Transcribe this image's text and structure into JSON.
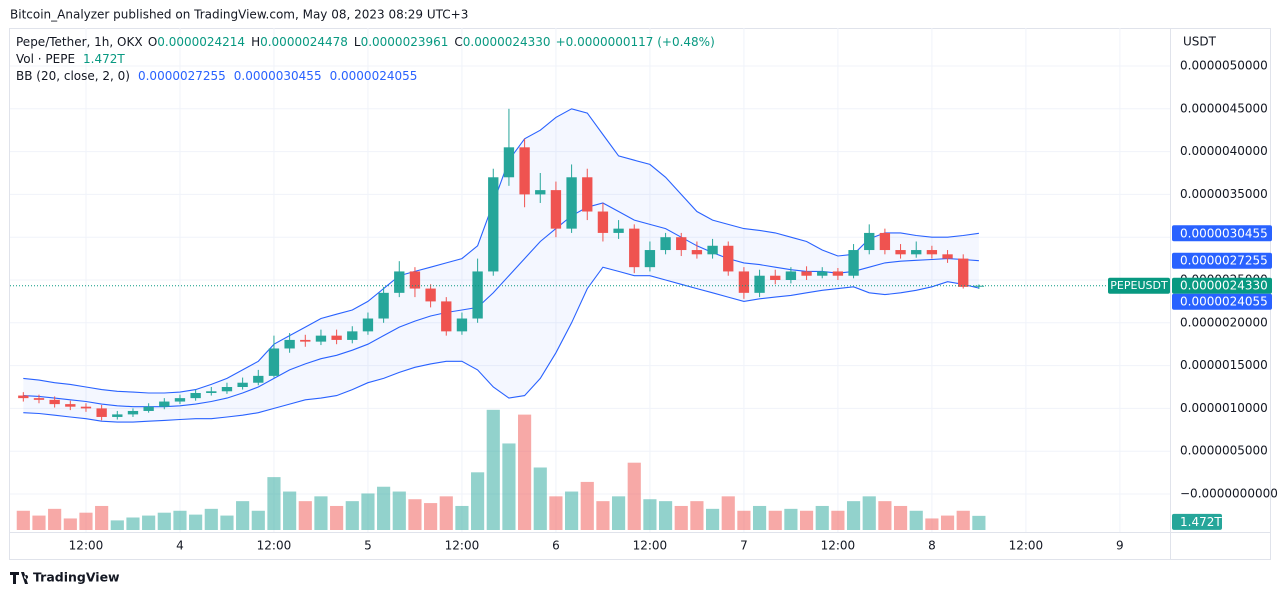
{
  "header": {
    "published": "Bitcoin_Analyzer published on TradingView.com, May 08, 2023 08:29 UTC+3",
    "brand": "TradingView"
  },
  "chart_data": {
    "type": "candlestick",
    "legend": {
      "symbol": "Pepe/Tether, 1h, OKX",
      "ohlc": [
        [
          "O",
          "0.0000024214"
        ],
        [
          "H",
          "0.0000024478"
        ],
        [
          "L",
          "0.0000023961"
        ],
        [
          "C",
          "0.0000024330"
        ]
      ],
      "change": "+0.0000000117 (+0.48%)",
      "volume": {
        "name": "Vol · PEPE",
        "value": "1.472T"
      },
      "bb": {
        "name": "BB (20, close, 2, 0)",
        "values": [
          "0.0000027255",
          "0.0000030455",
          "0.0000024055"
        ]
      }
    },
    "y_axis_label": "USDT",
    "up_color": "#26a69a",
    "down_color": "#ef5350",
    "bb_color": "#2962ff",
    "xlim": [
      2.3,
      150.4
    ],
    "xticks": [
      {
        "value": 12,
        "label": "12:00"
      },
      {
        "value": 24,
        "label": "4"
      },
      {
        "value": 36,
        "label": "12:00"
      },
      {
        "value": 48,
        "label": "5"
      },
      {
        "value": 60,
        "label": "12:00"
      },
      {
        "value": 72,
        "label": "6"
      },
      {
        "value": 84,
        "label": "12:00"
      },
      {
        "value": 96,
        "label": "7"
      },
      {
        "value": 108,
        "label": "12:00"
      },
      {
        "value": 120,
        "label": "8"
      },
      {
        "value": 132,
        "label": "12:00"
      },
      {
        "value": 144,
        "label": "9"
      }
    ],
    "ylim": [
      -4.44e-07,
      5.444e-06
    ],
    "yticks": [
      {
        "value": 5e-06,
        "label": "0.0000050000"
      },
      {
        "value": 4.5e-06,
        "label": "0.0000045000"
      },
      {
        "value": 4e-06,
        "label": "0.0000040000"
      },
      {
        "value": 3.5e-06,
        "label": "0.0000035000"
      },
      {
        "value": 3e-06,
        "label": "0.0000030000"
      },
      {
        "value": 2.5e-06,
        "label": "0.0000025000"
      },
      {
        "value": 2e-06,
        "label": "0.0000020000"
      },
      {
        "value": 1.5e-06,
        "label": "0.0000015000"
      },
      {
        "value": 1e-06,
        "label": "0.0000010000"
      },
      {
        "value": 5e-07,
        "label": "0.0000005000"
      },
      {
        "value": 0,
        "label": "−0.0000000000"
      }
    ],
    "volume_ylim": [
      0,
      13000000000000.0
    ],
    "grid": true,
    "x": [
      4,
      6,
      8,
      10,
      12,
      14,
      16,
      18,
      20,
      22,
      24,
      26,
      28,
      30,
      32,
      34,
      36,
      38,
      40,
      42,
      44,
      46,
      48,
      50,
      52,
      54,
      56,
      58,
      60,
      62,
      64,
      66,
      68,
      70,
      72,
      74,
      76,
      78,
      80,
      82,
      84,
      86,
      88,
      90,
      92,
      94,
      96,
      98,
      100,
      102,
      104,
      106,
      108,
      110,
      112,
      114,
      116,
      118,
      120,
      122,
      124,
      126
    ],
    "open": [
      1.15e-06,
      1.12e-06,
      1.1e-06,
      1.05e-06,
      1.02e-06,
      1e-06,
      9e-07,
      9.3e-07,
      9.7e-07,
      1.02e-06,
      1.08e-06,
      1.12e-06,
      1.18e-06,
      1.2e-06,
      1.25e-06,
      1.3e-06,
      1.38e-06,
      1.7e-06,
      1.8e-06,
      1.78e-06,
      1.85e-06,
      1.8e-06,
      1.9e-06,
      2.05e-06,
      2.35e-06,
      2.6e-06,
      2.4e-06,
      2.25e-06,
      1.9e-06,
      2.05e-06,
      2.6e-06,
      3.7e-06,
      4.05e-06,
      3.5e-06,
      3.55e-06,
      3.1e-06,
      3.7e-06,
      3.3e-06,
      3.05e-06,
      3.1e-06,
      2.65e-06,
      2.85e-06,
      3e-06,
      2.85e-06,
      2.8e-06,
      2.9e-06,
      2.6e-06,
      2.35e-06,
      2.55e-06,
      2.5e-06,
      2.6e-06,
      2.55e-06,
      2.6e-06,
      2.55e-06,
      2.85e-06,
      3.05e-06,
      2.85e-06,
      2.8e-06,
      2.85e-06,
      2.8e-06,
      2.75e-06,
      2.4214e-06
    ],
    "high": [
      1.19e-06,
      1.16e-06,
      1.14e-06,
      1.09e-06,
      1.06e-06,
      1.04e-06,
      9.7e-07,
      1e-06,
      1.06e-06,
      1.12e-06,
      1.16e-06,
      1.22e-06,
      1.25e-06,
      1.3e-06,
      1.36e-06,
      1.45e-06,
      1.85e-06,
      1.88e-06,
      1.86e-06,
      1.92e-06,
      1.92e-06,
      1.96e-06,
      2.12e-06,
      2.42e-06,
      2.72e-06,
      2.65e-06,
      2.45e-06,
      2.3e-06,
      2.12e-06,
      2.75e-06,
      3.8e-06,
      4.5e-06,
      4.15e-06,
      3.75e-06,
      3.65e-06,
      3.85e-06,
      3.8e-06,
      3.4e-06,
      3.2e-06,
      3.15e-06,
      2.95e-06,
      3.05e-06,
      3.05e-06,
      2.95e-06,
      2.98e-06,
      2.95e-06,
      2.65e-06,
      2.62e-06,
      2.62e-06,
      2.65e-06,
      2.66e-06,
      2.65e-06,
      2.64e-06,
      2.92e-06,
      3.15e-06,
      3.1e-06,
      2.92e-06,
      2.95e-06,
      2.9e-06,
      2.85e-06,
      2.8e-06,
      2.4478e-06
    ],
    "low": [
      1.08e-06,
      1.06e-06,
      1.01e-06,
      9.8e-07,
      9.6e-07,
      8.6e-07,
      8.7e-07,
      9e-07,
      9.5e-07,
      9.9e-07,
      1.05e-06,
      1.09e-06,
      1.15e-06,
      1.17e-06,
      1.22e-06,
      1.27e-06,
      1.36e-06,
      1.65e-06,
      1.72e-06,
      1.74e-06,
      1.75e-06,
      1.76e-06,
      1.86e-06,
      2e-06,
      2.3e-06,
      2.3e-06,
      2.18e-06,
      1.85e-06,
      1.86e-06,
      2e-06,
      2.55e-06,
      3.6e-06,
      3.35e-06,
      3.4e-06,
      3e-06,
      3.05e-06,
      3.2e-06,
      2.95e-06,
      2.98e-06,
      2.58e-06,
      2.6e-06,
      2.8e-06,
      2.78e-06,
      2.75e-06,
      2.75e-06,
      2.55e-06,
      2.28e-06,
      2.3e-06,
      2.45e-06,
      2.46e-06,
      2.5e-06,
      2.52e-06,
      2.5e-06,
      2.52e-06,
      2.8e-06,
      2.8e-06,
      2.75e-06,
      2.76e-06,
      2.75e-06,
      2.7e-06,
      2.4e-06,
      2.3961e-06
    ],
    "close": [
      1.12e-06,
      1.1e-06,
      1.05e-06,
      1.02e-06,
      1e-06,
      9e-07,
      9.3e-07,
      9.7e-07,
      1.02e-06,
      1.08e-06,
      1.12e-06,
      1.18e-06,
      1.2e-06,
      1.25e-06,
      1.3e-06,
      1.38e-06,
      1.7e-06,
      1.8e-06,
      1.78e-06,
      1.85e-06,
      1.8e-06,
      1.9e-06,
      2.05e-06,
      2.35e-06,
      2.6e-06,
      2.4e-06,
      2.25e-06,
      1.9e-06,
      2.05e-06,
      2.6e-06,
      3.7e-06,
      4.05e-06,
      3.5e-06,
      3.55e-06,
      3.1e-06,
      3.7e-06,
      3.3e-06,
      3.05e-06,
      3.1e-06,
      2.65e-06,
      2.85e-06,
      3e-06,
      2.85e-06,
      2.8e-06,
      2.9e-06,
      2.6e-06,
      2.35e-06,
      2.55e-06,
      2.5e-06,
      2.6e-06,
      2.55e-06,
      2.6e-06,
      2.55e-06,
      2.85e-06,
      3.05e-06,
      2.85e-06,
      2.8e-06,
      2.85e-06,
      2.8e-06,
      2.75e-06,
      2.42e-06,
      2.433e-06
    ],
    "volume": [
      2000000000000.0,
      1500000000000.0,
      2200000000000.0,
      1200000000000.0,
      1800000000000.0,
      2500000000000.0,
      1000000000000.0,
      1300000000000.0,
      1500000000000.0,
      1800000000000.0,
      2000000000000.0,
      1600000000000.0,
      2200000000000.0,
      1500000000000.0,
      3000000000000.0,
      2000000000000.0,
      5500000000000.0,
      4000000000000.0,
      3000000000000.0,
      3500000000000.0,
      2500000000000.0,
      3000000000000.0,
      3800000000000.0,
      4500000000000.0,
      4000000000000.0,
      3200000000000.0,
      2800000000000.0,
      3500000000000.0,
      2500000000000.0,
      6000000000000.0,
      12500000000000.0,
      9000000000000.0,
      12000000000000.0,
      6500000000000.0,
      3500000000000.0,
      4000000000000.0,
      5000000000000.0,
      3000000000000.0,
      3500000000000.0,
      7000000000000.0,
      3200000000000.0,
      3000000000000.0,
      2500000000000.0,
      3000000000000.0,
      2200000000000.0,
      3500000000000.0,
      2000000000000.0,
      2500000000000.0,
      2000000000000.0,
      2200000000000.0,
      2000000000000.0,
      2500000000000.0,
      2000000000000.0,
      3000000000000.0,
      3500000000000.0,
      3000000000000.0,
      2500000000000.0,
      2000000000000.0,
      1200000000000.0,
      1500000000000.0,
      2000000000000.0,
      1472000000000.0
    ],
    "bb": {
      "upper": [
        1.35e-06,
        1.33e-06,
        1.3e-06,
        1.28e-06,
        1.25e-06,
        1.22e-06,
        1.2e-06,
        1.19e-06,
        1.18e-06,
        1.18e-06,
        1.19e-06,
        1.22e-06,
        1.28e-06,
        1.35e-06,
        1.45e-06,
        1.55e-06,
        1.75e-06,
        1.85e-06,
        1.95e-06,
        2.05e-06,
        2.1e-06,
        2.15e-06,
        2.25e-06,
        2.4e-06,
        2.55e-06,
        2.6e-06,
        2.65e-06,
        2.7e-06,
        2.75e-06,
        2.9e-06,
        3.4e-06,
        3.9e-06,
        4.15e-06,
        4.25e-06,
        4.4e-06,
        4.5e-06,
        4.45e-06,
        4.2e-06,
        3.95e-06,
        3.9e-06,
        3.85e-06,
        3.7e-06,
        3.5e-06,
        3.3e-06,
        3.2e-06,
        3.15e-06,
        3.1e-06,
        3.08e-06,
        3.05e-06,
        3e-06,
        2.95e-06,
        2.85e-06,
        2.78e-06,
        2.8e-06,
        2.98e-06,
        3.05e-06,
        3.05e-06,
        3.02e-06,
        3e-06,
        3e-06,
        3.02e-06,
        3.0455e-06
      ],
      "basis": [
        1.15e-06,
        1.14e-06,
        1.12e-06,
        1.1e-06,
        1.08e-06,
        1.05e-06,
        1.03e-06,
        1.02e-06,
        1.02e-06,
        1.02e-06,
        1.03e-06,
        1.05e-06,
        1.08e-06,
        1.12e-06,
        1.18e-06,
        1.25e-06,
        1.35e-06,
        1.45e-06,
        1.52e-06,
        1.58e-06,
        1.62e-06,
        1.68e-06,
        1.75e-06,
        1.85e-06,
        1.95e-06,
        2.02e-06,
        2.08e-06,
        2.12e-06,
        2.15e-06,
        2.18e-06,
        2.35e-06,
        2.55e-06,
        2.75e-06,
        2.95e-06,
        3.1e-06,
        3.25e-06,
        3.35e-06,
        3.4e-06,
        3.3e-06,
        3.2e-06,
        3.15e-06,
        3.1e-06,
        3e-06,
        2.9e-06,
        2.82e-06,
        2.75e-06,
        2.7e-06,
        2.68e-06,
        2.65e-06,
        2.62e-06,
        2.6e-06,
        2.6e-06,
        2.58e-06,
        2.6e-06,
        2.65e-06,
        2.7e-06,
        2.72e-06,
        2.73e-06,
        2.74e-06,
        2.75e-06,
        2.74e-06,
        2.7255e-06
      ],
      "lower": [
        9.5e-07,
        9.4e-07,
        9.2e-07,
        9e-07,
        8.8e-07,
        8.5e-07,
        8.4e-07,
        8.4e-07,
        8.5e-07,
        8.6e-07,
        8.7e-07,
        8.8e-07,
        8.8e-07,
        9e-07,
        9.2e-07,
        9.5e-07,
        1e-06,
        1.05e-06,
        1.1e-06,
        1.12e-06,
        1.15e-06,
        1.22e-06,
        1.3e-06,
        1.35e-06,
        1.42e-06,
        1.48e-06,
        1.52e-06,
        1.55e-06,
        1.55e-06,
        1.45e-06,
        1.25e-06,
        1.12e-06,
        1.15e-06,
        1.35e-06,
        1.65e-06,
        2e-06,
        2.4e-06,
        2.65e-06,
        2.6e-06,
        2.55e-06,
        2.55e-06,
        2.5e-06,
        2.45e-06,
        2.4e-06,
        2.35e-06,
        2.3e-06,
        2.25e-06,
        2.28e-06,
        2.3e-06,
        2.32e-06,
        2.35e-06,
        2.38e-06,
        2.4e-06,
        2.42e-06,
        2.35e-06,
        2.33e-06,
        2.35e-06,
        2.38e-06,
        2.42e-06,
        2.48e-06,
        2.45e-06,
        2.4055e-06
      ]
    },
    "price_badges": [
      {
        "value": 3.0455e-06,
        "label": "0.0000030455",
        "color": "#2962ff"
      },
      {
        "value": 2.7255e-06,
        "label": "0.0000027255",
        "color": "#2962ff"
      },
      {
        "value": 2.433e-06,
        "label": "0.0000024330",
        "color": "#089981",
        "symbol": "PEPEUSDT"
      },
      {
        "value": 2.4055e-06,
        "label": "0.0000024055",
        "color": "#2962ff"
      }
    ],
    "volume_badge": {
      "value": 1472000000000.0,
      "label": "1.472T",
      "color": "#26a69a"
    }
  }
}
